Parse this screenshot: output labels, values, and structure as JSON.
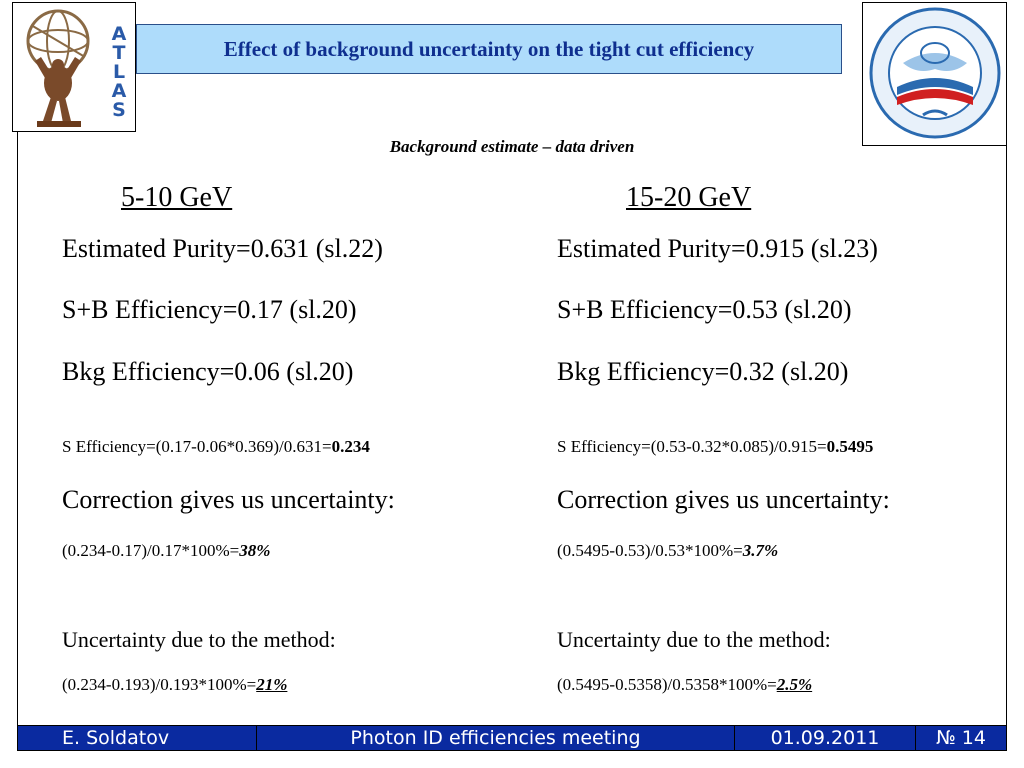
{
  "header": {
    "title": "Effect of background uncertainty on the tight cut efficiency",
    "atlas_letters": [
      "A",
      "T",
      "L",
      "A",
      "S"
    ]
  },
  "subtitle": "Background estimate – data driven",
  "columns": [
    {
      "range": "5-10 GeV",
      "purity": "Estimated Purity=0.631 (sl.22)",
      "sb_eff": "S+B Efficiency=0.17 (sl.20)",
      "bkg_eff": "Bkg Efficiency=0.06 (sl.20)",
      "s_eff_prefix": "S Efficiency=(0.17-0.06*0.369)/0.631=",
      "s_eff_value": "0.234",
      "correction_label": "Correction gives us uncertainty:",
      "correction_prefix": "(0.234-0.17)/0.17*100%=",
      "correction_value": "38%",
      "method_label": "Uncertainty due to the method:",
      "method_prefix": "(0.234-0.193)/0.193*100%=",
      "method_value": "21%"
    },
    {
      "range": "15-20 GeV",
      "purity": "Estimated Purity=0.915 (sl.23)",
      "sb_eff": "S+B Efficiency=0.53 (sl.20)",
      "bkg_eff": "Bkg Efficiency=0.32 (sl.20)",
      "s_eff_prefix": "S Efficiency=(0.53-0.32*0.085)/0.915=",
      "s_eff_value": "0.5495",
      "correction_label": "Correction gives us uncertainty:",
      "correction_prefix": "(0.5495-0.53)/0.53*100%=",
      "correction_value": "3.7%",
      "method_label": "Uncertainty due to the method:",
      "method_prefix": "(0.5495-0.5358)/0.5358*100%=",
      "method_value": "2.5%"
    }
  ],
  "footer": {
    "author": "E. Soldatov",
    "meeting": "Photon ID efficiencies meeting",
    "date": "01.09.2011",
    "page": "№ 14"
  },
  "colors": {
    "title_bg": "#aedcfb",
    "title_text": "#0f2f8f",
    "footer_bg": "#0a2aa0",
    "atlas_letters": "#2a5aa8"
  }
}
